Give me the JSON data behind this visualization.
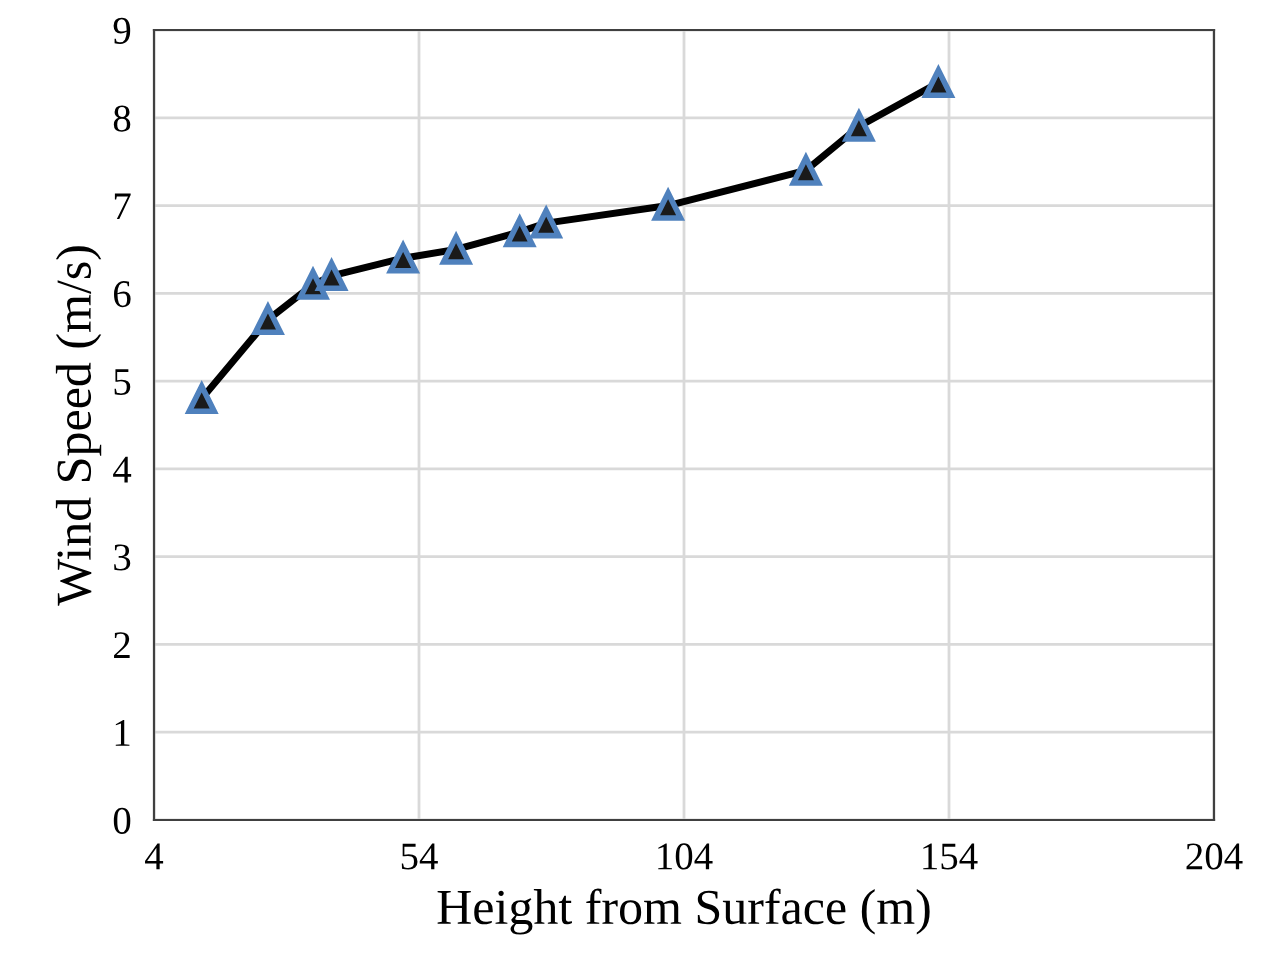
{
  "chart_data": {
    "type": "line",
    "xlabel": "Height from Surface (m)",
    "ylabel": "Wind Speed (m/s)",
    "x": [
      13,
      25.5,
      34,
      37.5,
      51,
      61,
      73,
      78,
      101,
      127,
      137,
      152
    ],
    "series": [
      {
        "color": "#000000",
        "values": [
          4.8,
          5.7,
          6.1,
          6.2,
          6.4,
          6.5,
          6.7,
          6.8,
          7.0,
          7.4,
          7.9,
          8.4
        ]
      }
    ],
    "xlim": [
      4,
      204
    ],
    "xticks": [
      4,
      54,
      104,
      154,
      204
    ],
    "ylim": [
      0,
      9
    ],
    "yticks": [
      0,
      1,
      2,
      3,
      4,
      5,
      6,
      7,
      8,
      9
    ],
    "grid": true,
    "marker": "triangle",
    "line_style": "solid",
    "legend": false
  }
}
